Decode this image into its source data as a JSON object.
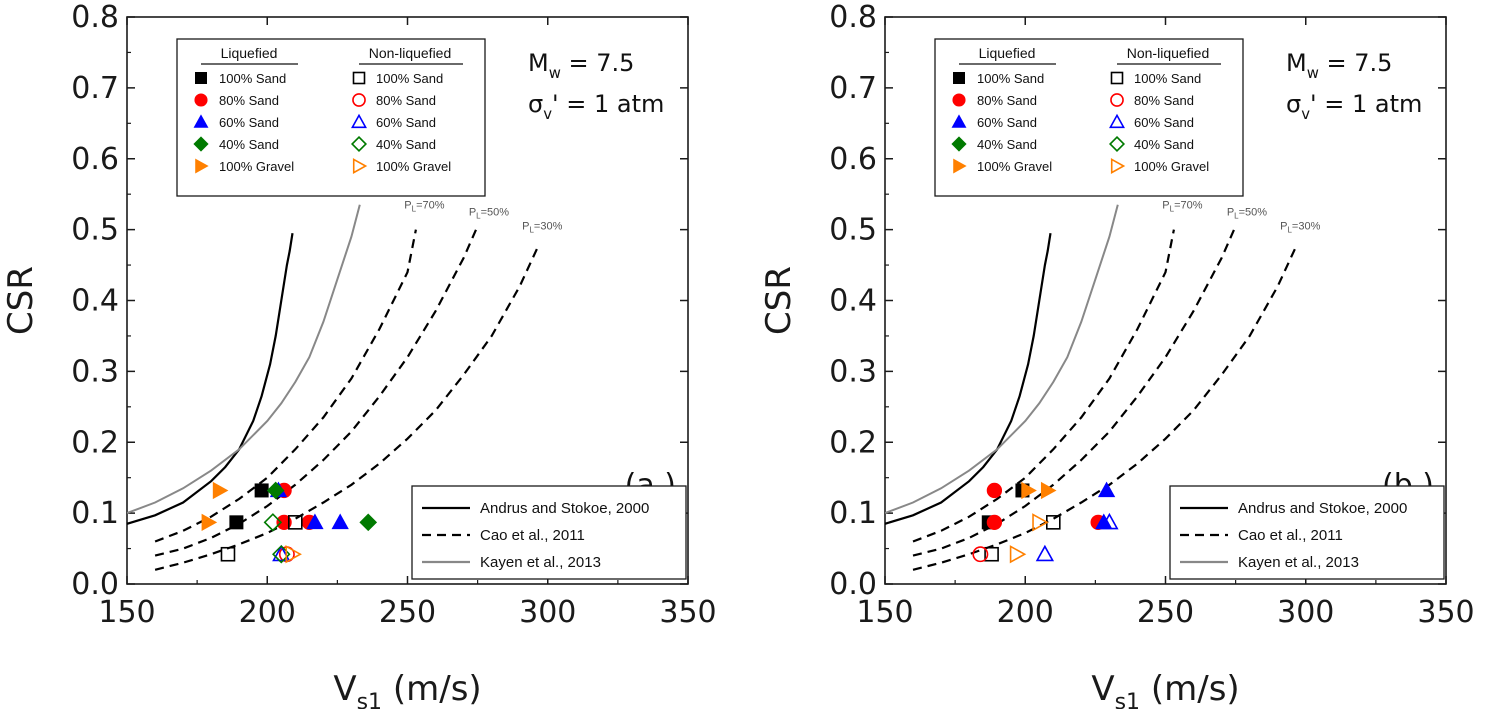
{
  "chart_data": [
    {
      "type": "scatter",
      "panel_label": "(a.)",
      "xlabel_main": "V",
      "xlabel_sub": "s1",
      "xlabel_unit": " (m/s)",
      "ylabel": "CSR",
      "xlim": [
        150,
        350
      ],
      "ylim": [
        0,
        0.8
      ],
      "xticks": [
        "150",
        "200",
        "250",
        "300",
        "350"
      ],
      "yticks": [
        "0.0",
        "0.1",
        "0.2",
        "0.3",
        "0.4",
        "0.5",
        "0.6",
        "0.7",
        "0.8"
      ],
      "annotation": {
        "mw_main": "M",
        "mw_sub": "w",
        "mw_val": " = 7.5",
        "sigma_main": "σ",
        "sigma_sub": "v",
        "sigma_val": "' = 1 atm"
      },
      "legend": {
        "placement": "top-left",
        "liquefied_header": "Liquefied",
        "nonliquefied_header": "Non-liquefied",
        "entries": [
          "100% Sand",
          "80% Sand",
          "60% Sand",
          "40% Sand",
          "100% Gravel"
        ]
      },
      "line_legend": {
        "placement": "bottom-right",
        "entries": [
          "Andrus and Stokoe, 2000",
          "Cao et al., 2011",
          "Kayen et al., 2013"
        ]
      },
      "pl_labels": [
        {
          "text": "P",
          "sub": "L",
          "val": "=70%",
          "x": 251,
          "y": 0.53
        },
        {
          "text": "P",
          "sub": "L",
          "val": "=50%",
          "x": 274,
          "y": 0.52
        },
        {
          "text": "P",
          "sub": "L",
          "val": "=30%",
          "x": 293,
          "y": 0.5
        }
      ],
      "series": [
        {
          "name": "100% Sand",
          "state": "liquefied",
          "marker": "square",
          "color": "#000000",
          "points": [
            [
              189,
              0.087
            ],
            [
              198,
              0.132
            ]
          ]
        },
        {
          "name": "80% Sand",
          "state": "liquefied",
          "marker": "circle",
          "color": "#ff0000",
          "points": [
            [
              206,
              0.132
            ],
            [
              206,
              0.087
            ],
            [
              215,
              0.087
            ]
          ]
        },
        {
          "name": "60% Sand",
          "state": "liquefied",
          "marker": "triangle",
          "color": "#0000ff",
          "points": [
            [
              204,
              0.132
            ],
            [
              217,
              0.087
            ],
            [
              226,
              0.087
            ]
          ]
        },
        {
          "name": "40% Sand",
          "state": "liquefied",
          "marker": "diamond",
          "color": "#007a00",
          "points": [
            [
              203,
              0.132
            ],
            [
              236,
              0.087
            ]
          ]
        },
        {
          "name": "100% Gravel",
          "state": "liquefied",
          "marker": "tri-right",
          "color": "#ff8000",
          "points": [
            [
              183,
              0.132
            ],
            [
              179,
              0.087
            ]
          ]
        },
        {
          "name": "100% Sand",
          "state": "non-liquefied",
          "marker": "square",
          "color": "#000000",
          "points": [
            [
              186,
              0.042
            ],
            [
              210,
              0.087
            ]
          ]
        },
        {
          "name": "80% Sand",
          "state": "non-liquefied",
          "marker": "circle",
          "color": "#ff0000",
          "points": [
            [
              207,
              0.042
            ]
          ]
        },
        {
          "name": "60% Sand",
          "state": "non-liquefied",
          "marker": "triangle",
          "color": "#0000ff",
          "points": [
            [
              205,
              0.042
            ]
          ]
        },
        {
          "name": "40% Sand",
          "state": "non-liquefied",
          "marker": "diamond",
          "color": "#007a00",
          "points": [
            [
              202,
              0.087
            ],
            [
              205,
              0.042
            ]
          ]
        },
        {
          "name": "100% Gravel",
          "state": "non-liquefied",
          "marker": "tri-right",
          "color": "#ff8000",
          "points": [
            [
              209,
              0.042
            ]
          ]
        }
      ],
      "curves": [
        {
          "name": "Andrus and Stokoe, 2000",
          "style": "solid",
          "color": "#000000",
          "points": [
            [
              150,
              0.085
            ],
            [
              160,
              0.097
            ],
            [
              170,
              0.115
            ],
            [
              180,
              0.145
            ],
            [
              185,
              0.165
            ],
            [
              190,
              0.19
            ],
            [
              195,
              0.23
            ],
            [
              198,
              0.265
            ],
            [
              201,
              0.31
            ],
            [
              203,
              0.35
            ],
            [
              205,
              0.4
            ],
            [
              207,
              0.45
            ],
            [
              208,
              0.47
            ],
            [
              209,
              0.495
            ]
          ]
        },
        {
          "name": "Kayen et al., 2013",
          "style": "solid",
          "color": "#888888",
          "points": [
            [
              150,
              0.1
            ],
            [
              160,
              0.115
            ],
            [
              170,
              0.135
            ],
            [
              180,
              0.16
            ],
            [
              190,
              0.19
            ],
            [
              200,
              0.23
            ],
            [
              205,
              0.255
            ],
            [
              210,
              0.285
            ],
            [
              215,
              0.32
            ],
            [
              220,
              0.37
            ],
            [
              225,
              0.43
            ],
            [
              230,
              0.49
            ],
            [
              233,
              0.535
            ]
          ]
        },
        {
          "name": "Cao et al., 2011 PL=70%",
          "style": "dashed",
          "color": "#000000",
          "points": [
            [
              160,
              0.06
            ],
            [
              170,
              0.075
            ],
            [
              180,
              0.095
            ],
            [
              190,
              0.12
            ],
            [
              200,
              0.15
            ],
            [
              210,
              0.19
            ],
            [
              220,
              0.235
            ],
            [
              230,
              0.29
            ],
            [
              240,
              0.36
            ],
            [
              250,
              0.44
            ],
            [
              253,
              0.5
            ]
          ]
        },
        {
          "name": "Cao et al., 2011 PL=50%",
          "style": "dashed",
          "color": "#000000",
          "points": [
            [
              160,
              0.04
            ],
            [
              170,
              0.05
            ],
            [
              180,
              0.065
            ],
            [
              190,
              0.085
            ],
            [
              200,
              0.11
            ],
            [
              210,
              0.14
            ],
            [
              220,
              0.175
            ],
            [
              230,
              0.215
            ],
            [
              240,
              0.265
            ],
            [
              250,
              0.32
            ],
            [
              260,
              0.385
            ],
            [
              270,
              0.46
            ],
            [
              275,
              0.505
            ]
          ]
        },
        {
          "name": "Cao et al., 2011 PL=30%",
          "style": "dashed",
          "color": "#000000",
          "points": [
            [
              160,
              0.02
            ],
            [
              170,
              0.03
            ],
            [
              180,
              0.042
            ],
            [
              190,
              0.056
            ],
            [
              200,
              0.072
            ],
            [
              210,
              0.092
            ],
            [
              220,
              0.115
            ],
            [
              230,
              0.14
            ],
            [
              240,
              0.17
            ],
            [
              250,
              0.205
            ],
            [
              260,
              0.245
            ],
            [
              270,
              0.295
            ],
            [
              280,
              0.35
            ],
            [
              290,
              0.42
            ],
            [
              297,
              0.48
            ]
          ]
        }
      ]
    },
    {
      "type": "scatter",
      "panel_label": "(b.)",
      "xlabel_main": "V",
      "xlabel_sub": "s1",
      "xlabel_unit": " (m/s)",
      "ylabel": "CSR",
      "xlim": [
        150,
        350
      ],
      "ylim": [
        0,
        0.8
      ],
      "xticks": [
        "150",
        "200",
        "250",
        "300",
        "350"
      ],
      "yticks": [
        "0.0",
        "0.1",
        "0.2",
        "0.3",
        "0.4",
        "0.5",
        "0.6",
        "0.7",
        "0.8"
      ],
      "annotation": {
        "mw_main": "M",
        "mw_sub": "w",
        "mw_val": " = 7.5",
        "sigma_main": "σ",
        "sigma_sub": "v",
        "sigma_val": "' = 1 atm"
      },
      "legend": {
        "placement": "top-left",
        "liquefied_header": "Liquefied",
        "nonliquefied_header": "Non-liquefied",
        "entries": [
          "100% Sand",
          "80% Sand",
          "60% Sand",
          "40% Sand",
          "100% Gravel"
        ]
      },
      "line_legend": {
        "placement": "bottom-right",
        "entries": [
          "Andrus and Stokoe, 2000",
          "Cao et al., 2011",
          "Kayen et al., 2013"
        ]
      },
      "pl_labels": [
        {
          "text": "P",
          "sub": "L",
          "val": "=70%",
          "x": 251,
          "y": 0.53
        },
        {
          "text": "P",
          "sub": "L",
          "val": "=50%",
          "x": 274,
          "y": 0.52
        },
        {
          "text": "P",
          "sub": "L",
          "val": "=30%",
          "x": 293,
          "y": 0.5
        }
      ],
      "series": [
        {
          "name": "100% Sand",
          "state": "liquefied",
          "marker": "square",
          "color": "#000000",
          "points": [
            [
              187,
              0.087
            ],
            [
              199,
              0.132
            ]
          ]
        },
        {
          "name": "80% Sand",
          "state": "liquefied",
          "marker": "circle",
          "color": "#ff0000",
          "points": [
            [
              189,
              0.132
            ],
            [
              189,
              0.087
            ],
            [
              226,
              0.087
            ]
          ]
        },
        {
          "name": "60% Sand",
          "state": "liquefied",
          "marker": "triangle",
          "color": "#0000ff",
          "points": [
            [
              229,
              0.132
            ],
            [
              228,
              0.087
            ]
          ]
        },
        {
          "name": "100% Gravel",
          "state": "liquefied",
          "marker": "tri-right",
          "color": "#ff8000",
          "points": [
            [
              201,
              0.132
            ],
            [
              208,
              0.132
            ]
          ]
        },
        {
          "name": "100% Sand",
          "state": "non-liquefied",
          "marker": "square",
          "color": "#000000",
          "points": [
            [
              188,
              0.042
            ],
            [
              210,
              0.087
            ]
          ]
        },
        {
          "name": "80% Sand",
          "state": "non-liquefied",
          "marker": "circle",
          "color": "#ff0000",
          "points": [
            [
              184,
              0.042
            ]
          ]
        },
        {
          "name": "60% Sand",
          "state": "non-liquefied",
          "marker": "triangle",
          "color": "#0000ff",
          "points": [
            [
              207,
              0.042
            ],
            [
              230,
              0.087
            ]
          ]
        },
        {
          "name": "100% Gravel",
          "state": "non-liquefied",
          "marker": "tri-right",
          "color": "#ff8000",
          "points": [
            [
              197,
              0.042
            ],
            [
              205,
              0.087
            ]
          ]
        }
      ],
      "curves": [
        {
          "name": "Andrus and Stokoe, 2000",
          "style": "solid",
          "color": "#000000",
          "points": [
            [
              150,
              0.085
            ],
            [
              160,
              0.097
            ],
            [
              170,
              0.115
            ],
            [
              180,
              0.145
            ],
            [
              185,
              0.165
            ],
            [
              190,
              0.19
            ],
            [
              195,
              0.23
            ],
            [
              198,
              0.265
            ],
            [
              201,
              0.31
            ],
            [
              203,
              0.35
            ],
            [
              205,
              0.4
            ],
            [
              207,
              0.45
            ],
            [
              208,
              0.47
            ],
            [
              209,
              0.495
            ]
          ]
        },
        {
          "name": "Kayen et al., 2013",
          "style": "solid",
          "color": "#888888",
          "points": [
            [
              150,
              0.1
            ],
            [
              160,
              0.115
            ],
            [
              170,
              0.135
            ],
            [
              180,
              0.16
            ],
            [
              190,
              0.19
            ],
            [
              200,
              0.23
            ],
            [
              205,
              0.255
            ],
            [
              210,
              0.285
            ],
            [
              215,
              0.32
            ],
            [
              220,
              0.37
            ],
            [
              225,
              0.43
            ],
            [
              230,
              0.49
            ],
            [
              233,
              0.535
            ]
          ]
        },
        {
          "name": "Cao et al., 2011 PL=70%",
          "style": "dashed",
          "color": "#000000",
          "points": [
            [
              160,
              0.06
            ],
            [
              170,
              0.075
            ],
            [
              180,
              0.095
            ],
            [
              190,
              0.12
            ],
            [
              200,
              0.15
            ],
            [
              210,
              0.19
            ],
            [
              220,
              0.235
            ],
            [
              230,
              0.29
            ],
            [
              240,
              0.36
            ],
            [
              250,
              0.44
            ],
            [
              253,
              0.5
            ]
          ]
        },
        {
          "name": "Cao et al., 2011 PL=50%",
          "style": "dashed",
          "color": "#000000",
          "points": [
            [
              160,
              0.04
            ],
            [
              170,
              0.05
            ],
            [
              180,
              0.065
            ],
            [
              190,
              0.085
            ],
            [
              200,
              0.11
            ],
            [
              210,
              0.14
            ],
            [
              220,
              0.175
            ],
            [
              230,
              0.215
            ],
            [
              240,
              0.265
            ],
            [
              250,
              0.32
            ],
            [
              260,
              0.385
            ],
            [
              270,
              0.46
            ],
            [
              275,
              0.505
            ]
          ]
        },
        {
          "name": "Cao et al., 2011 PL=30%",
          "style": "dashed",
          "color": "#000000",
          "points": [
            [
              160,
              0.02
            ],
            [
              170,
              0.03
            ],
            [
              180,
              0.042
            ],
            [
              190,
              0.056
            ],
            [
              200,
              0.072
            ],
            [
              210,
              0.092
            ],
            [
              220,
              0.115
            ],
            [
              230,
              0.14
            ],
            [
              240,
              0.17
            ],
            [
              250,
              0.205
            ],
            [
              260,
              0.245
            ],
            [
              270,
              0.295
            ],
            [
              280,
              0.35
            ],
            [
              290,
              0.42
            ],
            [
              297,
              0.48
            ]
          ]
        }
      ]
    }
  ],
  "legend_markers": [
    "square",
    "circle",
    "triangle",
    "diamond",
    "tri-right"
  ],
  "legend_colors": [
    "#000000",
    "#ff0000",
    "#0000ff",
    "#007a00",
    "#ff8000"
  ]
}
